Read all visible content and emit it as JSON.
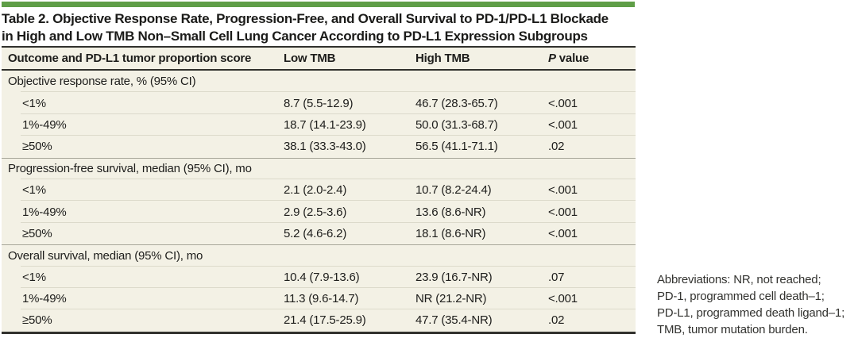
{
  "colors": {
    "accent_green_bar": "#5f9e47",
    "table_background": "#f3f1e5",
    "rule_dark": "#31312d",
    "rule_light": "#dcdacb",
    "rule_section": "#a7a699",
    "text": "#1d1d1b"
  },
  "title": {
    "line1": "Table 2. Objective Response Rate, Progression-Free, and Overall Survival to PD-1/PD-L1 Blockade",
    "line2": "in High and Low TMB Non–Small Cell Lung Cancer According to PD-L1 Expression Subgroups"
  },
  "table": {
    "columns": {
      "outcome": "Outcome and PD-L1 tumor proportion score",
      "low": "Low TMB",
      "high": "High TMB",
      "p_italic": "P",
      "p_rest": " value"
    },
    "sections": [
      {
        "header": "Objective response rate, % (95% CI)",
        "rows": [
          {
            "label": "<1%",
            "low": "8.7 (5.5-12.9)",
            "high": "46.7 (28.3-65.7)",
            "p": "<.001"
          },
          {
            "label": "1%-49%",
            "low": "18.7 (14.1-23.9)",
            "high": "50.0 (31.3-68.7)",
            "p": "<.001"
          },
          {
            "label": "≥50%",
            "low": "38.1 (33.3-43.0)",
            "high": "56.5 (41.1-71.1)",
            "p": ".02"
          }
        ]
      },
      {
        "header": "Progression-free survival, median (95% CI), mo",
        "rows": [
          {
            "label": "<1%",
            "low": "2.1 (2.0-2.4)",
            "high": "10.7 (8.2-24.4)",
            "p": "<.001"
          },
          {
            "label": "1%-49%",
            "low": "2.9 (2.5-3.6)",
            "high": "13.6 (8.6-NR)",
            "p": "<.001"
          },
          {
            "label": "≥50%",
            "low": "5.2 (4.6-6.2)",
            "high": "18.1 (8.6-NR)",
            "p": "<.001"
          }
        ]
      },
      {
        "header": "Overall survival, median (95% CI), mo",
        "rows": [
          {
            "label": "<1%",
            "low": "10.4 (7.9-13.6)",
            "high": "23.9 (16.7-NR)",
            "p": ".07"
          },
          {
            "label": "1%-49%",
            "low": "11.3 (9.6-14.7)",
            "high": "NR (21.2-NR)",
            "p": "<.001"
          },
          {
            "label": "≥50%",
            "low": "21.4 (17.5-25.9)",
            "high": "47.7 (35.4-NR)",
            "p": ".02"
          }
        ]
      }
    ]
  },
  "footnote": {
    "line1": "Abbreviations: NR, not reached;",
    "line2": "PD-1, programmed cell death–1;",
    "line3": "PD-L1, programmed death ligand–1;",
    "line4": "TMB, tumor mutation burden."
  }
}
